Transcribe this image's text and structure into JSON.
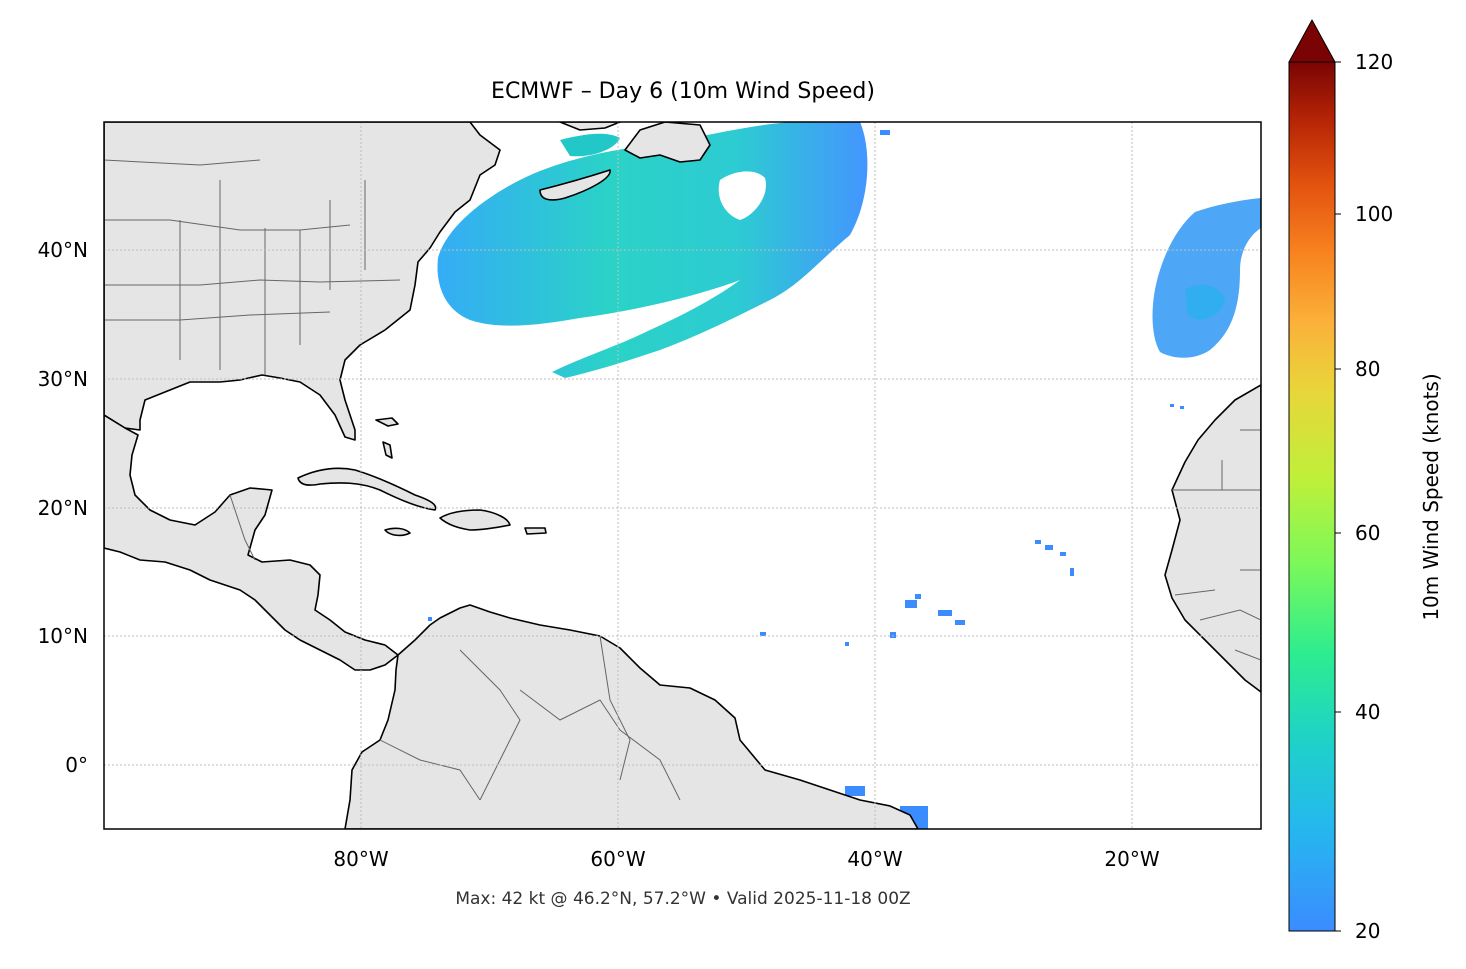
{
  "title": "ECMWF – Day 6 (10m Wind Speed)",
  "subtitle": "Max: 42 kt @ 46.2°N, 57.2°W • Valid 2025-11-18 00Z",
  "map": {
    "extent": {
      "lon_min": -100,
      "lon_max": -10,
      "lat_min": -5,
      "lat_max": 50
    },
    "lat_ticks": [
      {
        "value": 40,
        "label": "40°N"
      },
      {
        "value": 30,
        "label": "30°N"
      },
      {
        "value": 20,
        "label": "20°N"
      },
      {
        "value": 10,
        "label": "10°N"
      },
      {
        "value": 0,
        "label": "0°"
      }
    ],
    "lon_ticks": [
      {
        "value": -80,
        "label": "80°W"
      },
      {
        "value": -60,
        "label": "60°W"
      },
      {
        "value": -40,
        "label": "40°W"
      },
      {
        "value": -20,
        "label": "20°W"
      }
    ],
    "land_color": "#e5e5e5",
    "coast_color": "#000000",
    "border_color": "#666666",
    "grid_color": "#bdbdbd"
  },
  "colorbar": {
    "label": "10m Wind Speed (knots)",
    "min": 20,
    "max": 120,
    "extend": "max",
    "ticks": [
      {
        "value": 120,
        "label": "120"
      },
      {
        "value": 100,
        "label": "100"
      },
      {
        "value": 80,
        "label": "80"
      },
      {
        "value": 60,
        "label": "60"
      },
      {
        "value": 40,
        "label": "40"
      },
      {
        "value": 20,
        "label": "20"
      }
    ],
    "colormap": "turbo"
  },
  "max_wind": {
    "value_kt": 42,
    "lat": 46.2,
    "lon": -57.2,
    "valid": "2025-11-18 00Z"
  }
}
